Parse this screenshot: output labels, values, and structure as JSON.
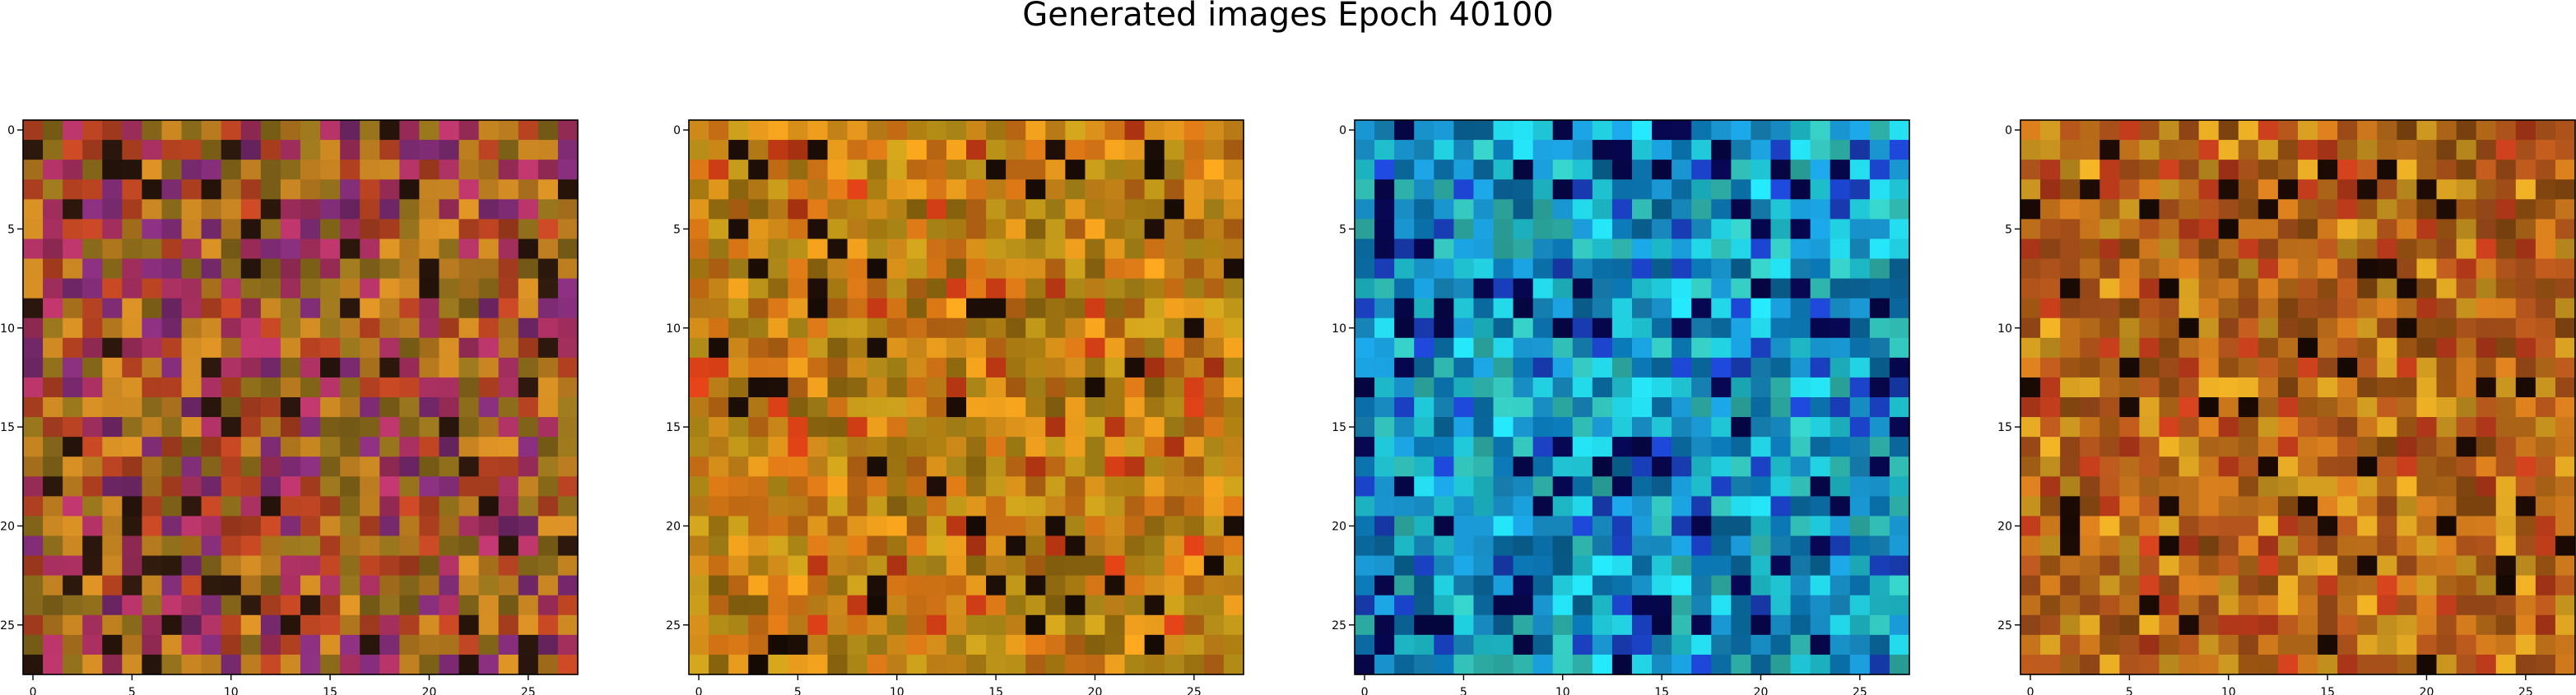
{
  "title": "Generated images Epoch 40100",
  "chart_data": [
    {
      "type": "heatmap",
      "name": "image-1",
      "palette": [
        "#2a160c",
        "#b04020",
        "#8a6a1a",
        "#c08020",
        "#a83060",
        "#7a2a70"
      ],
      "palette_weights": [
        0.08,
        0.2,
        0.18,
        0.24,
        0.18,
        0.12
      ],
      "seed": 11,
      "shape": [
        28,
        28
      ],
      "xlim": [
        -0.5,
        27.5
      ],
      "ylim": [
        27.5,
        -0.5
      ],
      "xticks": [
        0,
        5,
        10,
        15,
        20,
        25
      ],
      "yticks": [
        0,
        5,
        10,
        15,
        20,
        25
      ]
    },
    {
      "type": "heatmap",
      "name": "image-2",
      "palette": [
        "#1a0c06",
        "#d8901a",
        "#c46c14",
        "#b89018",
        "#9a7010",
        "#c43a14"
      ],
      "palette_weights": [
        0.06,
        0.28,
        0.24,
        0.2,
        0.14,
        0.08
      ],
      "seed": 23,
      "shape": [
        28,
        28
      ],
      "xlim": [
        -0.5,
        27.5
      ],
      "ylim": [
        27.5,
        -0.5
      ],
      "xticks": [
        0,
        5,
        10,
        15,
        20,
        25
      ],
      "yticks": [
        0,
        5,
        10,
        15,
        20,
        25
      ]
    },
    {
      "type": "heatmap",
      "name": "image-3",
      "palette": [
        "#06064a",
        "#1890c8",
        "#20c8d8",
        "#0a6aa0",
        "#30b8b0",
        "#1a40c0"
      ],
      "palette_weights": [
        0.1,
        0.24,
        0.24,
        0.18,
        0.14,
        0.1
      ],
      "seed": 37,
      "shape": [
        28,
        28
      ],
      "xlim": [
        -0.5,
        27.5
      ],
      "ylim": [
        27.5,
        -0.5
      ],
      "xticks": [
        0,
        5,
        10,
        15,
        20,
        25
      ],
      "yticks": [
        0,
        5,
        10,
        15,
        20,
        25
      ]
    },
    {
      "type": "heatmap",
      "name": "image-4",
      "palette": [
        "#1a0a04",
        "#c0701a",
        "#a8501a",
        "#d09a20",
        "#8a4a10",
        "#b83a1a"
      ],
      "palette_weights": [
        0.06,
        0.3,
        0.22,
        0.18,
        0.14,
        0.1
      ],
      "seed": 51,
      "shape": [
        28,
        28
      ],
      "xlim": [
        -0.5,
        27.5
      ],
      "ylim": [
        27.5,
        -0.5
      ],
      "xticks": [
        0,
        5,
        10,
        15,
        20,
        25
      ],
      "yticks": [
        0,
        5,
        10,
        15,
        20,
        25
      ]
    }
  ]
}
